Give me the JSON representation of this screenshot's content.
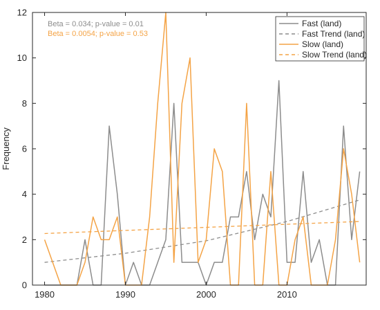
{
  "chart_data": {
    "type": "line",
    "title": "",
    "xlabel": "",
    "ylabel": "Frequency",
    "xlim": [
      1978.5,
      2019.8
    ],
    "ylim": [
      0,
      12
    ],
    "xticks": [
      1980,
      1990,
      2000,
      2010
    ],
    "yticks": [
      0,
      2,
      4,
      6,
      8,
      10,
      12
    ],
    "grid": false,
    "legend_position": "top-right",
    "annotations": [
      {
        "text": "Beta = 0.034; p-value = 0.01",
        "color": "#8c8c8c"
      },
      {
        "text": "Beta = 0.0054; p-value = 0.53",
        "color": "#f4a345"
      }
    ],
    "series": [
      {
        "name": "Fast (land)",
        "style": "solid",
        "color": "#8c8c8c",
        "x": [
          1980,
          1981,
          1982,
          1983,
          1984,
          1985,
          1986,
          1987,
          1988,
          1989,
          1990,
          1991,
          1992,
          1993,
          1994,
          1995,
          1996,
          1997,
          1998,
          1999,
          2000,
          2001,
          2002,
          2003,
          2004,
          2005,
          2006,
          2007,
          2008,
          2009,
          2010,
          2011,
          2012,
          2013,
          2014,
          2015,
          2016,
          2017,
          2018,
          2019
        ],
        "y": [
          0,
          0,
          0,
          0,
          0,
          2,
          0,
          0,
          7,
          4,
          0,
          1,
          0,
          0,
          1,
          2,
          8,
          1,
          1,
          1,
          0,
          1,
          1,
          3,
          3,
          5,
          2,
          4,
          3,
          9,
          1,
          1,
          5,
          1,
          2,
          0,
          0,
          7,
          2,
          5
        ]
      },
      {
        "name": "Fast Trend (land)",
        "style": "dashed",
        "color": "#8c8c8c",
        "x": [
          1980,
          1990,
          2000,
          2010,
          2019
        ],
        "y": [
          1.0,
          1.4,
          1.95,
          2.8,
          3.75
        ]
      },
      {
        "name": "Slow (land)",
        "style": "solid",
        "color": "#f4a345",
        "x": [
          1980,
          1981,
          1982,
          1983,
          1984,
          1985,
          1986,
          1987,
          1988,
          1989,
          1990,
          1991,
          1992,
          1993,
          1994,
          1995,
          1996,
          1997,
          1998,
          1999,
          2000,
          2001,
          2002,
          2003,
          2004,
          2005,
          2006,
          2007,
          2008,
          2009,
          2010,
          2011,
          2012,
          2013,
          2014,
          2015,
          2016,
          2017,
          2018,
          2019
        ],
        "y": [
          2,
          1,
          0,
          0,
          0,
          1,
          3,
          2,
          2,
          3,
          0,
          0,
          0,
          3,
          8,
          12,
          1,
          8,
          10,
          1,
          2,
          6,
          5,
          0,
          0,
          8,
          0,
          0,
          5,
          0,
          0,
          2,
          3,
          0,
          0,
          0,
          2,
          6,
          4,
          1
        ]
      },
      {
        "name": "Slow Trend (land)",
        "style": "dashed",
        "color": "#f4a345",
        "x": [
          1980,
          2019
        ],
        "y": [
          2.27,
          2.8
        ]
      }
    ]
  }
}
